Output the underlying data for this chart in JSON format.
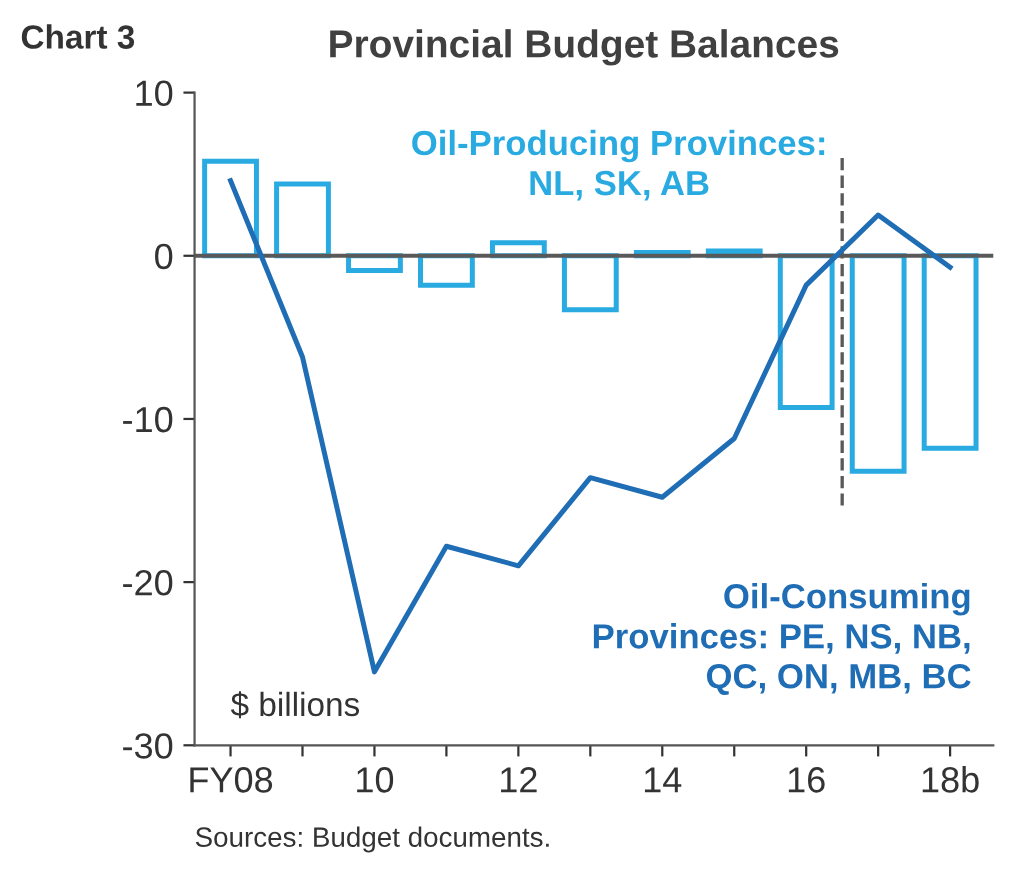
{
  "chart_data": {
    "type": "bar",
    "title": "Provincial Budget Balances",
    "x": [
      8,
      9,
      10,
      11,
      12,
      13,
      14,
      15,
      16,
      17,
      18
    ],
    "series": [
      {
        "name": "Oil-Producing Provinces:\nNL, SK, AB",
        "color": "#29abe2",
        "values": [
          5.8,
          4.4,
          -0.9,
          -1.8,
          0.8,
          -3.3,
          0.2,
          0.3,
          -9.3,
          -13.2,
          -11.8
        ]
      },
      {
        "name": "Oil-Consuming\nProvinces: PE, NS, NB,\nQC, ON, MB, BC",
        "type": "line",
        "color": "#1f6db5",
        "values": [
          4.6,
          -6.2,
          -25.5,
          -17.8,
          -19.0,
          -13.6,
          -14.8,
          -11.2,
          -1.8,
          2.5,
          -0.7
        ]
      }
    ],
    "xlim": [
      7.5,
      18.6
    ],
    "xticks": [
      {
        "value": 8,
        "label": "FY08"
      },
      {
        "value": 9,
        "label": null
      },
      10,
      {
        "value": 11,
        "label": null
      },
      12,
      {
        "value": 13,
        "label": null
      },
      14,
      {
        "value": 15,
        "label": null
      },
      16,
      {
        "value": 17,
        "label": null
      },
      {
        "value": 18,
        "label": "18b"
      }
    ],
    "ylim": [
      -30,
      10
    ],
    "yticks": [
      -30,
      -20,
      -10,
      0,
      10
    ],
    "ref_lines": [
      {
        "axis": "y",
        "value": 0,
        "color": "#595959",
        "line_style": "solid"
      },
      {
        "axis": "x",
        "value": 16.5,
        "color": "#595959",
        "line_style": "dashed"
      }
    ],
    "annotations": [
      "Chart 3",
      "$ billions",
      "Sources: Budget documents."
    ],
    "grid": false,
    "legend": false
  }
}
